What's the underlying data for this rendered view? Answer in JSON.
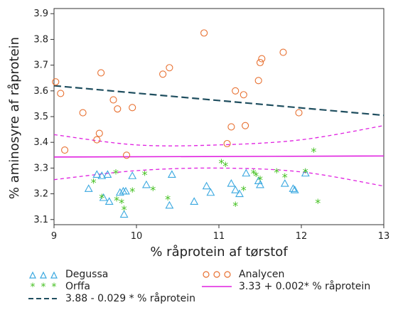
{
  "chart_data": {
    "type": "scatter",
    "title": "",
    "xlabel": "% råprotein af tørstof",
    "ylabel": "% aminosyre af råprotein",
    "xlim": [
      9,
      13
    ],
    "ylim": [
      3.08,
      3.92
    ],
    "xticks": [
      "9",
      "10",
      "11",
      "12",
      "13"
    ],
    "yticks": [
      "3.1",
      "3.2",
      "3.3",
      "3.4",
      "3.5",
      "3.6",
      "3.7",
      "3.8",
      "3.9"
    ],
    "colors": {
      "degussa": "#3aa8e0",
      "orffa": "#44c020",
      "analycen": "#e87030",
      "regression_analycen": "#1f4e5f",
      "regression_other": "#e020e0",
      "ci": "#e020e0"
    },
    "series": [
      {
        "name": "Degussa",
        "marker": "triangle",
        "points": [
          [
            9.42,
            3.22
          ],
          [
            9.52,
            3.275
          ],
          [
            9.58,
            3.27
          ],
          [
            9.6,
            3.185
          ],
          [
            9.65,
            3.275
          ],
          [
            9.67,
            3.17
          ],
          [
            9.8,
            3.205
          ],
          [
            9.84,
            3.21
          ],
          [
            9.85,
            3.12
          ],
          [
            9.87,
            3.21
          ],
          [
            9.95,
            3.27
          ],
          [
            10.12,
            3.235
          ],
          [
            10.4,
            3.155
          ],
          [
            10.43,
            3.275
          ],
          [
            10.7,
            3.17
          ],
          [
            10.85,
            3.23
          ],
          [
            10.9,
            3.205
          ],
          [
            11.15,
            3.24
          ],
          [
            11.2,
            3.215
          ],
          [
            11.25,
            3.2
          ],
          [
            11.33,
            3.28
          ],
          [
            11.48,
            3.25
          ],
          [
            11.5,
            3.235
          ],
          [
            11.8,
            3.24
          ],
          [
            11.9,
            3.22
          ],
          [
            11.92,
            3.215
          ],
          [
            12.05,
            3.28
          ]
        ]
      },
      {
        "name": "Orffa",
        "marker": "asterisk",
        "points": [
          [
            9.48,
            3.245
          ],
          [
            9.58,
            3.185
          ],
          [
            9.75,
            3.28
          ],
          [
            9.76,
            3.175
          ],
          [
            9.82,
            3.165
          ],
          [
            9.85,
            3.14
          ],
          [
            9.95,
            3.21
          ],
          [
            10.1,
            3.275
          ],
          [
            10.2,
            3.215
          ],
          [
            10.38,
            3.18
          ],
          [
            11.03,
            3.32
          ],
          [
            11.08,
            3.31
          ],
          [
            11.2,
            3.155
          ],
          [
            11.3,
            3.215
          ],
          [
            11.42,
            3.28
          ],
          [
            11.45,
            3.27
          ],
          [
            11.5,
            3.255
          ],
          [
            11.7,
            3.285
          ],
          [
            11.8,
            3.265
          ],
          [
            12.05,
            3.285
          ],
          [
            12.15,
            3.365
          ],
          [
            12.2,
            3.165
          ]
        ]
      },
      {
        "name": "Analycen",
        "marker": "circle",
        "points": [
          [
            9.02,
            3.635
          ],
          [
            9.08,
            3.59
          ],
          [
            9.13,
            3.37
          ],
          [
            9.35,
            3.515
          ],
          [
            9.52,
            3.41
          ],
          [
            9.55,
            3.435
          ],
          [
            9.57,
            3.67
          ],
          [
            9.72,
            3.565
          ],
          [
            9.77,
            3.53
          ],
          [
            9.88,
            3.35
          ],
          [
            9.95,
            3.535
          ],
          [
            10.32,
            3.665
          ],
          [
            10.4,
            3.69
          ],
          [
            10.82,
            3.825
          ],
          [
            11.1,
            3.395
          ],
          [
            11.15,
            3.46
          ],
          [
            11.2,
            3.6
          ],
          [
            11.3,
            3.585
          ],
          [
            11.32,
            3.465
          ],
          [
            11.48,
            3.64
          ],
          [
            11.5,
            3.71
          ],
          [
            11.52,
            3.725
          ],
          [
            11.78,
            3.75
          ],
          [
            11.97,
            3.515
          ]
        ]
      }
    ],
    "lines": [
      {
        "name": "3.88 - 0.029 * % råprotein",
        "style": "dashed",
        "intercept": 3.88,
        "slope": -0.029
      },
      {
        "name": "3.33 + 0.002* % råprotein",
        "style": "solid",
        "intercept": 3.33,
        "slope": 0.002
      }
    ],
    "confidence_band": {
      "upper": [
        [
          9,
          3.43
        ],
        [
          10,
          3.39
        ],
        [
          11,
          3.39
        ],
        [
          12,
          3.41
        ],
        [
          13,
          3.465
        ]
      ],
      "lower": [
        [
          9,
          3.255
        ],
        [
          10,
          3.29
        ],
        [
          11,
          3.3
        ],
        [
          12,
          3.285
        ],
        [
          13,
          3.23
        ]
      ]
    },
    "legend": [
      {
        "label": "Degussa",
        "symbol": "triangle"
      },
      {
        "label": "Analycen",
        "symbol": "circle"
      },
      {
        "label": "Orffa",
        "symbol": "asterisk"
      },
      {
        "label": "3.33 + 0.002* % råprotein",
        "symbol": "solid-line"
      },
      {
        "label": "3.88 - 0.029 * % råprotein",
        "symbol": "dashed-line"
      }
    ]
  }
}
